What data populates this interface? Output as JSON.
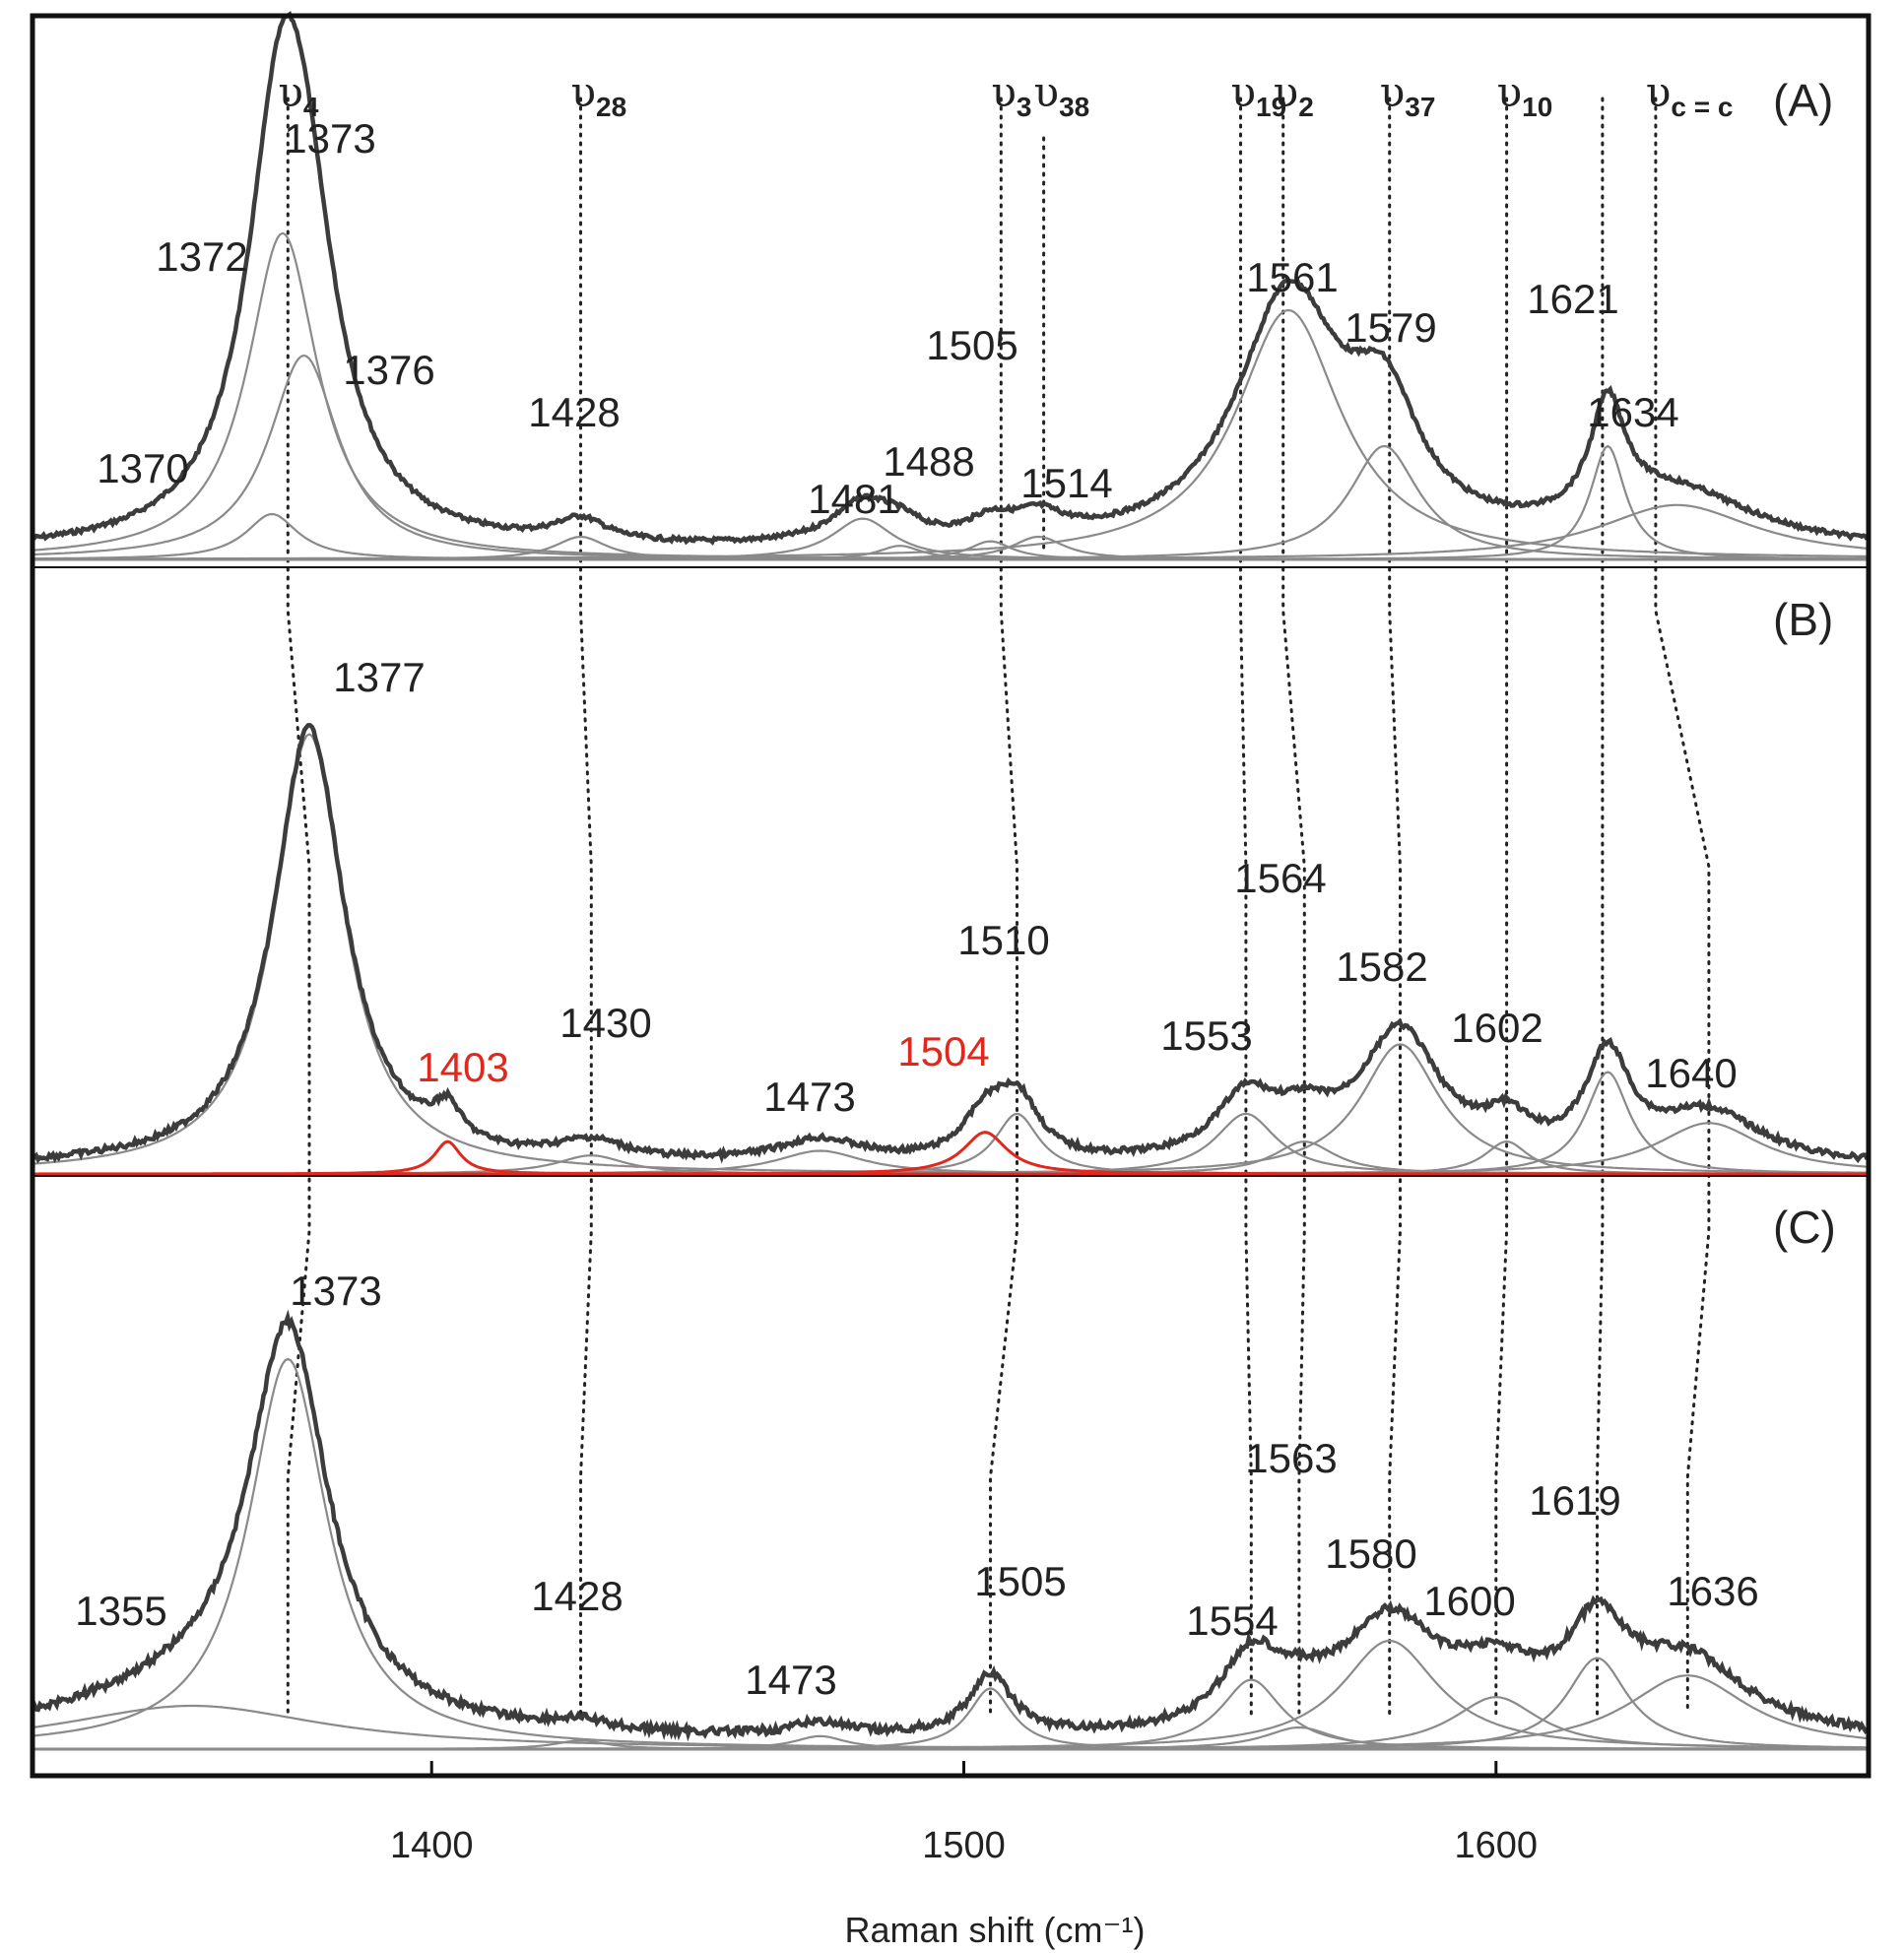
{
  "chart_data": {
    "type": "line",
    "title": "",
    "xlabel": "Raman shift (cm⁻¹)",
    "ylabel": "",
    "xlim": [
      1325,
      1670
    ],
    "xticks": [
      "1400",
      "1500",
      "1600"
    ],
    "xtick_values": [
      1400,
      1500,
      1600
    ],
    "grid": false,
    "mode_labels": [
      {
        "base": "υ",
        "sub": "4",
        "x": 1373
      },
      {
        "base": "υ",
        "sub": "28",
        "x": 1428
      },
      {
        "base": "υ",
        "sub": "3",
        "x": 1507
      },
      {
        "base": "υ",
        "sub": "38",
        "x": 1515
      },
      {
        "base": "υ",
        "sub": "19",
        "x": 1552
      },
      {
        "base": "υ",
        "sub": "2",
        "x": 1560
      },
      {
        "base": "υ",
        "sub": "37",
        "x": 1580
      },
      {
        "base": "υ",
        "sub": "10",
        "x": 1602
      },
      {
        "base": "υ",
        "sub": "c = c",
        "x": 1630
      }
    ],
    "panels": [
      {
        "label": "(A)",
        "components": [
          {
            "center": 1370,
            "height": 0.1,
            "width": 6
          },
          {
            "center": 1372,
            "height": 0.72,
            "width": 8
          },
          {
            "center": 1376,
            "height": 0.45,
            "width": 8
          },
          {
            "center": 1428,
            "height": 0.05,
            "width": 6
          },
          {
            "center": 1481,
            "height": 0.09,
            "width": 7
          },
          {
            "center": 1488,
            "height": 0.03,
            "width": 5
          },
          {
            "center": 1505,
            "height": 0.04,
            "width": 5
          },
          {
            "center": 1514,
            "height": 0.05,
            "width": 6
          },
          {
            "center": 1561,
            "height": 0.55,
            "width": 12
          },
          {
            "center": 1579,
            "height": 0.25,
            "width": 8
          },
          {
            "center": 1621,
            "height": 0.25,
            "width": 4
          },
          {
            "center": 1634,
            "height": 0.12,
            "width": 18
          }
        ],
        "peak_labels": [
          {
            "text": "1373",
            "x": 1373,
            "red": false
          },
          {
            "text": "1372",
            "x": 1372,
            "red": false
          },
          {
            "text": "1376",
            "x": 1376,
            "red": false
          },
          {
            "text": "1370",
            "x": 1370,
            "red": false
          },
          {
            "text": "1428",
            "x": 1428,
            "red": false
          },
          {
            "text": "1481",
            "x": 1481,
            "red": false
          },
          {
            "text": "1488",
            "x": 1488,
            "red": false
          },
          {
            "text": "1505",
            "x": 1505,
            "red": false
          },
          {
            "text": "1514",
            "x": 1514,
            "red": false
          },
          {
            "text": "1561",
            "x": 1561,
            "red": false
          },
          {
            "text": "1579",
            "x": 1579,
            "red": false
          },
          {
            "text": "1621",
            "x": 1621,
            "red": false
          },
          {
            "text": "1634",
            "x": 1634,
            "red": false
          }
        ]
      },
      {
        "label": "(B)",
        "components": [
          {
            "center": 1377,
            "height": 0.95,
            "width": 8
          },
          {
            "center": 1430,
            "height": 0.04,
            "width": 8
          },
          {
            "center": 1473,
            "height": 0.05,
            "width": 10
          },
          {
            "center": 1510,
            "height": 0.13,
            "width": 5
          },
          {
            "center": 1553,
            "height": 0.13,
            "width": 7
          },
          {
            "center": 1564,
            "height": 0.07,
            "width": 7
          },
          {
            "center": 1582,
            "height": 0.28,
            "width": 9
          },
          {
            "center": 1602,
            "height": 0.07,
            "width": 5
          },
          {
            "center": 1621,
            "height": 0.22,
            "width": 5
          },
          {
            "center": 1640,
            "height": 0.11,
            "width": 12
          }
        ],
        "red_components": [
          {
            "center": 1403,
            "height": 0.07,
            "width": 3
          },
          {
            "center": 1504,
            "height": 0.09,
            "width": 5
          }
        ],
        "peak_labels": [
          {
            "text": "1377",
            "x": 1377,
            "red": false
          },
          {
            "text": "1403",
            "x": 1403,
            "red": true
          },
          {
            "text": "1430",
            "x": 1430,
            "red": false
          },
          {
            "text": "1473",
            "x": 1473,
            "red": false
          },
          {
            "text": "1504",
            "x": 1504,
            "red": true
          },
          {
            "text": "1510",
            "x": 1510,
            "red": false
          },
          {
            "text": "1553",
            "x": 1553,
            "red": false
          },
          {
            "text": "1564",
            "x": 1564,
            "red": false
          },
          {
            "text": "1582",
            "x": 1582,
            "red": false
          },
          {
            "text": "1602",
            "x": 1602,
            "red": false
          },
          {
            "text": "1640",
            "x": 1640,
            "red": false
          }
        ]
      },
      {
        "label": "(C)",
        "components": [
          {
            "center": 1355,
            "height": 0.1,
            "width": 30
          },
          {
            "center": 1373,
            "height": 0.9,
            "width": 9
          },
          {
            "center": 1428,
            "height": 0.02,
            "width": 6
          },
          {
            "center": 1473,
            "height": 0.03,
            "width": 6
          },
          {
            "center": 1505,
            "height": 0.14,
            "width": 5
          },
          {
            "center": 1554,
            "height": 0.16,
            "width": 7
          },
          {
            "center": 1563,
            "height": 0.05,
            "width": 8
          },
          {
            "center": 1580,
            "height": 0.25,
            "width": 11
          },
          {
            "center": 1600,
            "height": 0.12,
            "width": 10
          },
          {
            "center": 1619,
            "height": 0.21,
            "width": 7
          },
          {
            "center": 1636,
            "height": 0.17,
            "width": 14
          }
        ],
        "peak_labels": [
          {
            "text": "1373",
            "x": 1373,
            "red": false
          },
          {
            "text": "1355",
            "x": 1355,
            "red": false
          },
          {
            "text": "1428",
            "x": 1428,
            "red": false
          },
          {
            "text": "1473",
            "x": 1473,
            "red": false
          },
          {
            "text": "1505",
            "x": 1505,
            "red": false
          },
          {
            "text": "1554",
            "x": 1554,
            "red": false
          },
          {
            "text": "1563",
            "x": 1563,
            "red": false
          },
          {
            "text": "1580",
            "x": 1580,
            "red": false
          },
          {
            "text": "1600",
            "x": 1600,
            "red": false
          },
          {
            "text": "1619",
            "x": 1619,
            "red": false
          },
          {
            "text": "1636",
            "x": 1636,
            "red": false
          }
        ]
      }
    ]
  },
  "colors": {
    "sum_trace": "#3c3c3c",
    "component": "#8a8a8a",
    "red": "#e0281e",
    "frame": "#111111",
    "guide": "#222222"
  }
}
